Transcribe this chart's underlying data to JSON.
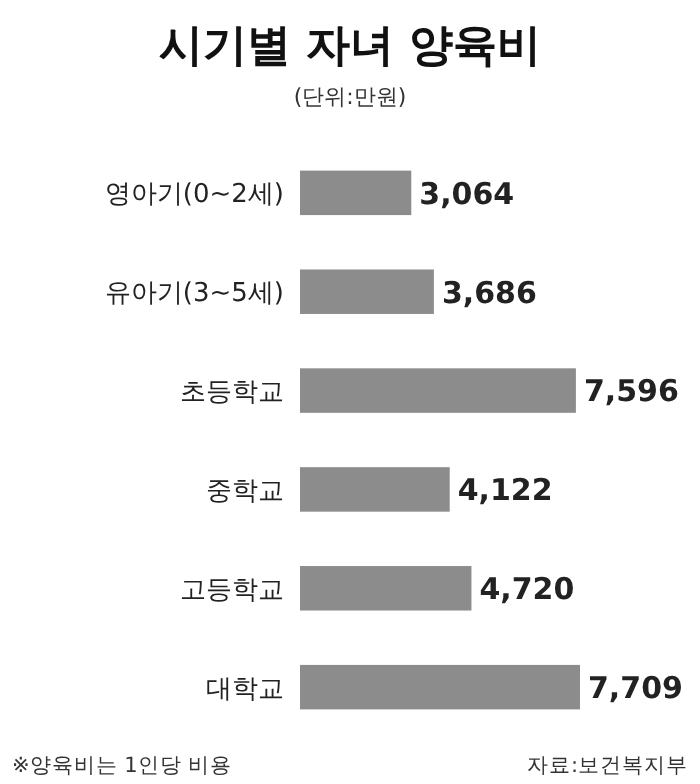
{
  "chart_data": {
    "type": "bar",
    "orientation": "horizontal",
    "title": "시기별 자녀 양육비",
    "subtitle": "(단위:만원)",
    "categories": [
      "영아기(0~2세)",
      "유아기(3~5세)",
      "초등학교",
      "중학교",
      "고등학교",
      "대학교"
    ],
    "values": [
      3064,
      3686,
      7596,
      4122,
      4720,
      7709
    ],
    "color": "#8c8c8c",
    "value_labels": [
      "3,064",
      "3,686",
      "7,596",
      "4,122",
      "4,720",
      "7,709"
    ],
    "annotations": [
      "※양육비는 1인당 비용",
      "자료:보건복지부"
    ]
  }
}
